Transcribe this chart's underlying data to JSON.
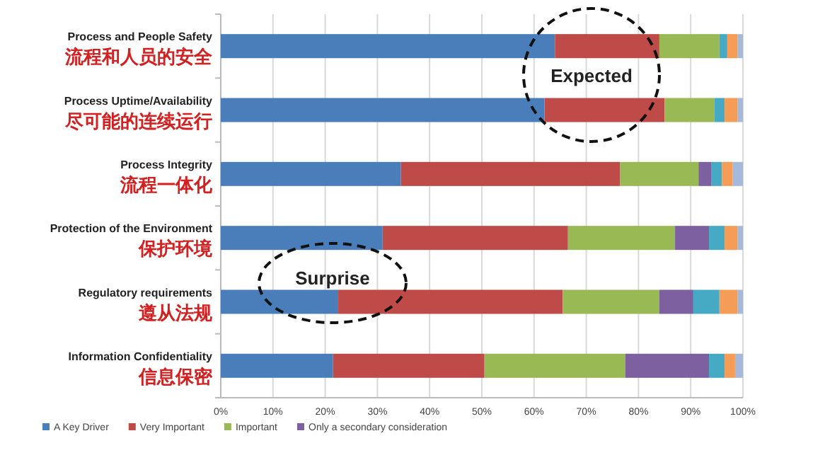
{
  "chart_data": {
    "type": "bar",
    "orientation": "horizontal",
    "stacked": true,
    "categories": [
      "Process and People Safety\n流程和人员的安全",
      "Process Uptime/Availability\n尽可能的连续运行",
      "Process Integrity\n流程一体化",
      "Protection of the Environment\n保护环境",
      "Regulatory requirements\n遵从法规",
      "Information Confidentiality\n信息保密"
    ],
    "series": [
      {
        "name": "A Key Driver",
        "color": "#4a7ebb",
        "values": [
          64,
          62,
          34.5,
          31,
          22.5,
          21.5
        ]
      },
      {
        "name": "Very Important",
        "color": "#be4b48",
        "values": [
          20,
          23,
          42,
          35.5,
          43,
          29
        ]
      },
      {
        "name": "Important",
        "color": "#98b954",
        "values": [
          11.5,
          9.5,
          15,
          20.5,
          18.5,
          27
        ]
      },
      {
        "name": "Only a secondary consideration",
        "color": "#7d60a0",
        "values": [
          0,
          0,
          2.5,
          6.5,
          6.5,
          16
        ]
      },
      {
        "color": "#46aac5",
        "values": [
          1.5,
          2,
          2,
          3,
          5,
          3
        ]
      },
      {
        "color": "#f59d56",
        "values": [
          2,
          2.5,
          2,
          2.5,
          3.5,
          2
        ]
      },
      {
        "color": "#a5b9dd",
        "values": [
          1,
          1,
          2,
          1,
          1,
          1.5
        ]
      }
    ],
    "xlim": [
      0,
      100
    ],
    "xticks": [
      {
        "value": 0,
        "label": "0%"
      },
      {
        "value": 10,
        "label": "10%"
      },
      {
        "value": 20,
        "label": "20%"
      },
      {
        "value": 30,
        "label": "30%"
      },
      {
        "value": 40,
        "label": "40%"
      },
      {
        "value": 50,
        "label": "50%"
      },
      {
        "value": 60,
        "label": "60%"
      },
      {
        "value": 70,
        "label": "70%"
      },
      {
        "value": 80,
        "label": "80%"
      },
      {
        "value": 90,
        "label": "90%"
      },
      {
        "value": 100,
        "label": "100%"
      }
    ],
    "grid": "x",
    "legend": "bottom",
    "annotations": [
      "Expected",
      "Surprise"
    ]
  }
}
